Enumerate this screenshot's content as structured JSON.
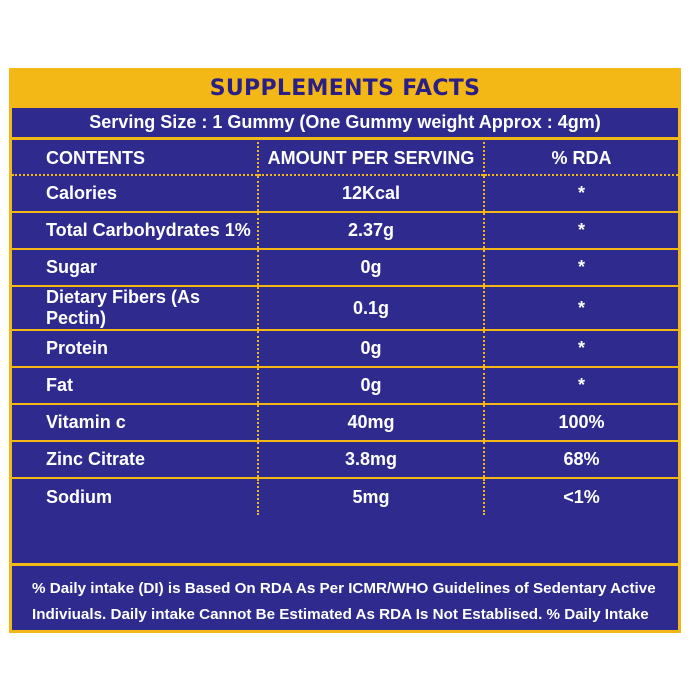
{
  "panel": {
    "title": "SUPPLEMENTS FACTS",
    "serving_size": "Serving Size : 1 Gummy (One Gummy weight Approx : 4gm)",
    "headers": [
      "CONTENTS",
      "AMOUNT PER SERVING",
      "% RDA"
    ],
    "rows": [
      {
        "content": "Calories",
        "amount": "12Kcal",
        "rda": "*"
      },
      {
        "content": "Total Carbohydrates 1%",
        "amount": "2.37g",
        "rda": "*"
      },
      {
        "content": "Sugar",
        "amount": "0g",
        "rda": "*"
      },
      {
        "content": "Dietary Fibers (As Pectin)",
        "amount": "0.1g",
        "rda": "*"
      },
      {
        "content": "Protein",
        "amount": "0g",
        "rda": "*"
      },
      {
        "content": "Fat",
        "amount": "0g",
        "rda": "*"
      },
      {
        "content": "Vitamin c",
        "amount": "40mg",
        "rda": "100%"
      },
      {
        "content": "Zinc Citrate",
        "amount": "3.8mg",
        "rda": "68%"
      },
      {
        "content": "Sodium",
        "amount": "5mg",
        "rda": "<1%"
      }
    ],
    "footnote": "% Daily intake (DI) is Based On RDA As Per  ICMR/WHO Guidelines of Sedentary Active Indiviuals. Daily intake Cannot Be Estimated As RDA Is Not Establised. % Daily Intake (DI) Varies As RDA Varies From Person To Person based On Physical Activity,Age And Physiological Conditions."
  },
  "colors": {
    "background": "#2e2a8e",
    "accent": "#f3b716",
    "text": "#ffffff",
    "title_text": "#2a1f87"
  }
}
